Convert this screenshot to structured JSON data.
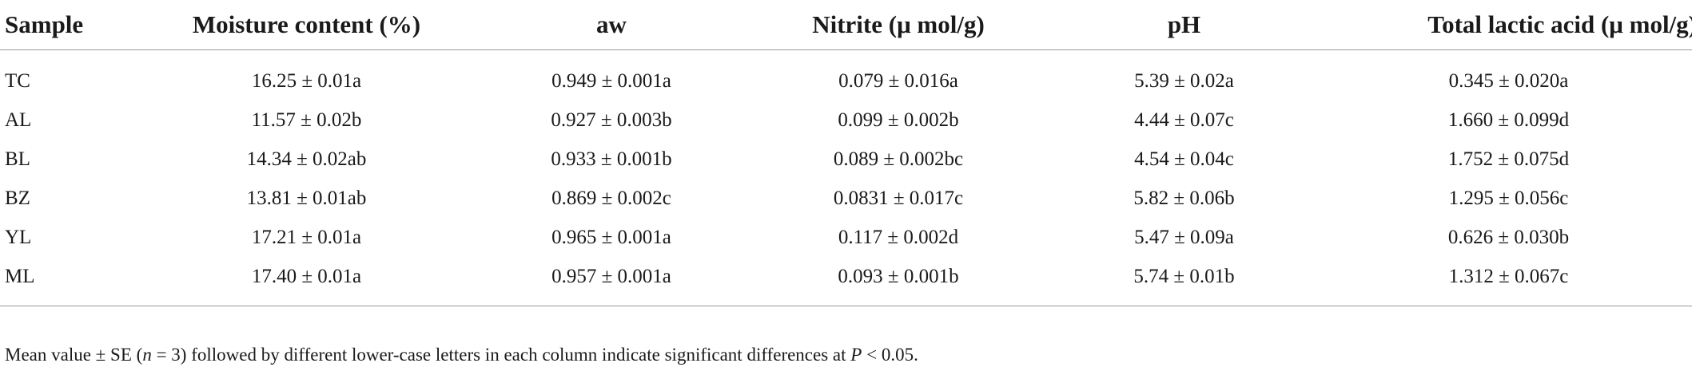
{
  "table": {
    "headers": {
      "sample": "Sample",
      "moisture": "Moisture content (%)",
      "aw": "aw",
      "nitrite": "Nitrite (μ mol/g)",
      "ph": "pH",
      "lactic": "Total lactic acid (μ mol/g)"
    },
    "rows": [
      [
        "TC",
        "16.25 ± 0.01a",
        "0.949 ± 0.001a",
        "0.079 ± 0.016a",
        "5.39 ± 0.02a",
        "0.345 ± 0.020a"
      ],
      [
        "AL",
        "11.57 ± 0.02b",
        "0.927 ± 0.003b",
        "0.099 ± 0.002b",
        "4.44 ± 0.07c",
        "1.660 ± 0.099d"
      ],
      [
        "BL",
        "14.34 ± 0.02ab",
        "0.933 ± 0.001b",
        "0.089 ± 0.002bc",
        "4.54 ± 0.04c",
        "1.752 ± 0.075d"
      ],
      [
        "BZ",
        "13.81 ± 0.01ab",
        "0.869 ± 0.002c",
        "0.0831 ± 0.017c",
        "5.82 ± 0.06b",
        "1.295 ± 0.056c"
      ],
      [
        "YL",
        "17.21 ± 0.01a",
        "0.965 ± 0.001a",
        "0.117 ± 0.002d",
        "5.47 ± 0.09a",
        "0.626 ± 0.030b"
      ],
      [
        "ML",
        "17.40 ± 0.01a",
        "0.957 ± 0.001a",
        "0.093 ± 0.001b",
        "5.74 ± 0.01b",
        "1.312 ± 0.067c"
      ]
    ]
  },
  "footnote": {
    "part1": "Mean value ± SE (",
    "n_var": "n",
    "part2": " = 3) followed by different lower-case letters in each column indicate significant differences at ",
    "p_var": "P",
    "part3": " < 0.05."
  }
}
